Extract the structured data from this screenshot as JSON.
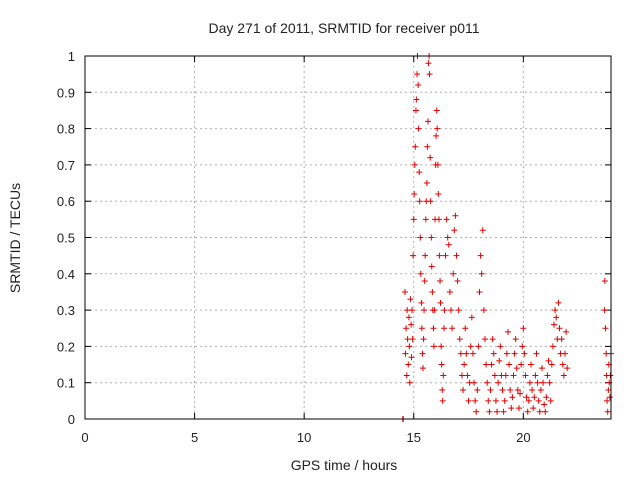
{
  "chart_data": {
    "type": "scatter",
    "title": "Day 271 of 2011, SRMTID for receiver p011",
    "xlabel": "GPS time / hours",
    "ylabel": "SRMTID / TECUs",
    "xlim": [
      0,
      24
    ],
    "ylim": [
      0,
      1
    ],
    "x_ticks": [
      0,
      5,
      10,
      15,
      20
    ],
    "y_ticks": [
      0,
      0.1,
      0.2,
      0.3,
      0.4,
      0.5,
      0.6,
      0.7,
      0.8,
      0.9,
      1
    ],
    "grid": true,
    "marker": "plus",
    "color": "#e00000",
    "series": [
      {
        "points": [
          [
            14.5,
            0.0
          ],
          [
            14.52,
            0.0
          ],
          [
            14.6,
            0.35
          ],
          [
            14.62,
            0.18
          ],
          [
            14.65,
            0.25
          ],
          [
            14.68,
            0.12
          ],
          [
            14.7,
            0.3
          ],
          [
            14.72,
            0.22
          ],
          [
            14.75,
            0.15
          ],
          [
            14.78,
            0.28
          ],
          [
            14.8,
            0.2
          ],
          [
            14.82,
            0.1
          ],
          [
            14.85,
            0.33
          ],
          [
            14.88,
            0.26
          ],
          [
            14.9,
            0.17
          ],
          [
            14.92,
            0.3
          ],
          [
            14.95,
            0.22
          ],
          [
            14.97,
            0.45
          ],
          [
            15.0,
            0.55
          ],
          [
            15.02,
            0.62
          ],
          [
            15.05,
            0.7
          ],
          [
            15.07,
            0.75
          ],
          [
            15.1,
            0.85
          ],
          [
            15.12,
            0.88
          ],
          [
            15.15,
            0.95
          ],
          [
            15.17,
            1.0
          ],
          [
            15.2,
            0.92
          ],
          [
            15.22,
            0.8
          ],
          [
            15.25,
            0.68
          ],
          [
            15.27,
            0.6
          ],
          [
            15.3,
            0.5
          ],
          [
            15.32,
            0.4
          ],
          [
            15.35,
            0.32
          ],
          [
            15.37,
            0.25
          ],
          [
            15.4,
            0.18
          ],
          [
            15.42,
            0.14
          ],
          [
            15.45,
            0.22
          ],
          [
            15.47,
            0.3
          ],
          [
            15.5,
            0.38
          ],
          [
            15.52,
            0.45
          ],
          [
            15.55,
            0.55
          ],
          [
            15.57,
            0.6
          ],
          [
            15.6,
            0.65
          ],
          [
            15.62,
            0.75
          ],
          [
            15.65,
            0.82
          ],
          [
            15.67,
            0.98
          ],
          [
            15.7,
            1.0
          ],
          [
            15.72,
            0.95
          ],
          [
            15.75,
            0.72
          ],
          [
            15.77,
            0.6
          ],
          [
            15.8,
            0.5
          ],
          [
            15.82,
            0.42
          ],
          [
            15.85,
            0.35
          ],
          [
            15.87,
            0.3
          ],
          [
            15.9,
            0.25
          ],
          [
            15.92,
            0.2
          ],
          [
            15.95,
            0.3
          ],
          [
            15.97,
            0.55
          ],
          [
            16.0,
            0.7
          ],
          [
            16.02,
            0.78
          ],
          [
            16.05,
            0.85
          ],
          [
            16.07,
            0.8
          ],
          [
            16.1,
            0.7
          ],
          [
            16.12,
            0.62
          ],
          [
            16.15,
            0.55
          ],
          [
            16.17,
            0.45
          ],
          [
            16.2,
            0.38
          ],
          [
            16.22,
            0.32
          ],
          [
            16.25,
            0.2
          ],
          [
            16.27,
            0.15
          ],
          [
            16.3,
            0.08
          ],
          [
            16.32,
            0.05
          ],
          [
            16.35,
            0.12
          ],
          [
            16.38,
            0.25
          ],
          [
            16.4,
            0.3
          ],
          [
            16.45,
            0.45
          ],
          [
            16.5,
            0.55
          ],
          [
            16.55,
            0.5
          ],
          [
            16.6,
            0.48
          ],
          [
            16.65,
            0.35
          ],
          [
            16.7,
            0.3
          ],
          [
            16.75,
            0.25
          ],
          [
            16.8,
            0.4
          ],
          [
            16.85,
            0.52
          ],
          [
            16.9,
            0.56
          ],
          [
            16.95,
            0.45
          ],
          [
            17.0,
            0.38
          ],
          [
            17.05,
            0.3
          ],
          [
            17.1,
            0.22
          ],
          [
            17.15,
            0.18
          ],
          [
            17.2,
            0.12
          ],
          [
            17.25,
            0.08
          ],
          [
            17.3,
            0.15
          ],
          [
            17.35,
            0.25
          ],
          [
            17.4,
            0.18
          ],
          [
            17.45,
            0.12
          ],
          [
            17.5,
            0.05
          ],
          [
            17.55,
            0.1
          ],
          [
            17.6,
            0.2
          ],
          [
            17.65,
            0.28
          ],
          [
            17.7,
            0.18
          ],
          [
            17.75,
            0.1
          ],
          [
            17.8,
            0.05
          ],
          [
            17.85,
            0.02
          ],
          [
            17.9,
            0.08
          ],
          [
            17.95,
            0.2
          ],
          [
            18.0,
            0.35
          ],
          [
            18.05,
            0.45
          ],
          [
            18.1,
            0.4
          ],
          [
            18.15,
            0.52
          ],
          [
            18.2,
            0.3
          ],
          [
            18.25,
            0.22
          ],
          [
            18.3,
            0.15
          ],
          [
            18.35,
            0.1
          ],
          [
            18.4,
            0.05
          ],
          [
            18.45,
            0.02
          ],
          [
            18.5,
            0.08
          ],
          [
            18.55,
            0.15
          ],
          [
            18.6,
            0.22
          ],
          [
            18.65,
            0.18
          ],
          [
            18.7,
            0.12
          ],
          [
            18.75,
            0.05
          ],
          [
            18.8,
            0.02
          ],
          [
            18.85,
            0.1
          ],
          [
            18.9,
            0.16
          ],
          [
            18.95,
            0.2
          ],
          [
            19.0,
            0.12
          ],
          [
            19.05,
            0.08
          ],
          [
            19.1,
            0.02
          ],
          [
            19.15,
            0.05
          ],
          [
            19.2,
            0.12
          ],
          [
            19.25,
            0.18
          ],
          [
            19.3,
            0.24
          ],
          [
            19.35,
            0.15
          ],
          [
            19.4,
            0.08
          ],
          [
            19.45,
            0.03
          ],
          [
            19.5,
            0.06
          ],
          [
            19.55,
            0.12
          ],
          [
            19.6,
            0.18
          ],
          [
            19.65,
            0.22
          ],
          [
            19.7,
            0.14
          ],
          [
            19.75,
            0.08
          ],
          [
            19.8,
            0.03
          ],
          [
            19.85,
            0.07
          ],
          [
            19.9,
            0.15
          ],
          [
            19.95,
            0.2
          ],
          [
            20.0,
            0.25
          ],
          [
            20.05,
            0.18
          ],
          [
            20.1,
            0.12
          ],
          [
            20.15,
            0.06
          ],
          [
            20.2,
            0.02
          ],
          [
            20.25,
            0.05
          ],
          [
            20.3,
            0.1
          ],
          [
            20.35,
            0.15
          ],
          [
            20.4,
            0.08
          ],
          [
            20.45,
            0.03
          ],
          [
            20.5,
            0.06
          ],
          [
            20.55,
            0.12
          ],
          [
            20.6,
            0.18
          ],
          [
            20.65,
            0.1
          ],
          [
            20.7,
            0.05
          ],
          [
            20.75,
            0.02
          ],
          [
            20.8,
            0.08
          ],
          [
            20.85,
            0.14
          ],
          [
            20.9,
            0.1
          ],
          [
            20.95,
            0.04
          ],
          [
            21.0,
            0.02
          ],
          [
            21.05,
            0.06
          ],
          [
            21.1,
            0.12
          ],
          [
            21.15,
            0.16
          ],
          [
            21.2,
            0.1
          ],
          [
            21.25,
            0.05
          ],
          [
            21.3,
            0.15
          ],
          [
            21.35,
            0.2
          ],
          [
            21.4,
            0.26
          ],
          [
            21.45,
            0.3
          ],
          [
            21.5,
            0.28
          ],
          [
            21.55,
            0.22
          ],
          [
            21.6,
            0.32
          ],
          [
            21.65,
            0.25
          ],
          [
            21.7,
            0.18
          ],
          [
            21.75,
            0.22
          ],
          [
            21.8,
            0.15
          ],
          [
            21.85,
            0.12
          ],
          [
            21.9,
            0.18
          ],
          [
            21.95,
            0.24
          ],
          [
            22.0,
            0.14
          ],
          [
            23.7,
            0.3
          ],
          [
            23.72,
            0.38
          ],
          [
            23.75,
            0.25
          ],
          [
            23.78,
            0.18
          ],
          [
            23.8,
            0.12
          ],
          [
            23.82,
            0.05
          ],
          [
            23.85,
            0.02
          ],
          [
            23.88,
            0.08
          ],
          [
            23.9,
            0.15
          ],
          [
            23.92,
            0.1
          ],
          [
            23.95,
            0.06
          ],
          [
            23.97,
            0.12
          ],
          [
            24.0,
            0.18
          ]
        ]
      }
    ]
  }
}
